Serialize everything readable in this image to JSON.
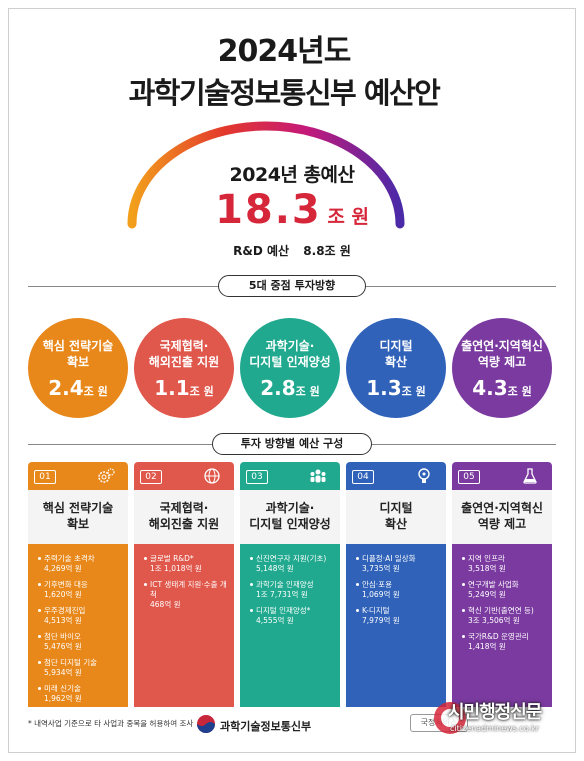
{
  "header": {
    "year_title": "2024년도",
    "main_title": "과학기술정보통신부 예산안"
  },
  "total": {
    "label": "2024년 총예산",
    "value": "18.3",
    "unit": "조 원",
    "rd_label": "R&D 예산",
    "rd_value": "8.8조 원"
  },
  "section1": {
    "label": "5대 중점 투자방향"
  },
  "section2": {
    "label": "투자 방향별 예산 구성"
  },
  "directions": [
    {
      "name": "핵심 전략기술\n확보",
      "amount": "2.4",
      "unit": "조 원",
      "color": "#e8881a"
    },
    {
      "name": "국제협력·\n해외진출 지원",
      "amount": "1.1",
      "unit": "조 원",
      "color": "#e0574b"
    },
    {
      "name": "과학기술·\n디지털 인재양성",
      "amount": "2.8",
      "unit": "조 원",
      "color": "#20a98f"
    },
    {
      "name": "디지털\n확산",
      "amount": "1.3",
      "unit": "조 원",
      "color": "#2f62b8"
    },
    {
      "name": "출연연·지역혁신\n역량 제고",
      "amount": "4.3",
      "unit": "조 원",
      "color": "#7b3aa0"
    }
  ],
  "cards": [
    {
      "num": "01",
      "title": "핵심 전략기술\n확보",
      "icon": "gear-icon",
      "color": "#e8881a",
      "items": [
        {
          "name": "주력기술 초격차",
          "amount": "4,269억 원"
        },
        {
          "name": "기후변화 대응",
          "amount": "1,620억 원"
        },
        {
          "name": "우주경제진입",
          "amount": "4,513억 원"
        },
        {
          "name": "첨단 바이오",
          "amount": "5,476억 원"
        },
        {
          "name": "첨단 디지털 기술",
          "amount": "5,934억 원"
        },
        {
          "name": "미래 신기술",
          "amount": "1,962억 원"
        }
      ]
    },
    {
      "num": "02",
      "title": "국제협력·\n해외진출 지원",
      "icon": "globe-icon",
      "color": "#e0574b",
      "items": [
        {
          "name": "글로벌 R&D*",
          "amount": "1조 1,018억 원"
        },
        {
          "name": "ICT 생태계 지원·수출 개척",
          "amount": "468억 원"
        }
      ]
    },
    {
      "num": "03",
      "title": "과학기술·\n디지털 인재양성",
      "icon": "people-icon",
      "color": "#20a98f",
      "items": [
        {
          "name": "신진연구자 지원(기초)",
          "amount": "5,148억 원"
        },
        {
          "name": "과학기술 인재양성",
          "amount": "1조 7,731억 원"
        },
        {
          "name": "디지털 인재양성*",
          "amount": "4,555억 원"
        }
      ]
    },
    {
      "num": "04",
      "title": "디지털\n확산",
      "icon": "bulb-icon",
      "color": "#2f62b8",
      "items": [
        {
          "name": "디플정·AI 일상화",
          "amount": "3,735억 원"
        },
        {
          "name": "안심·포용",
          "amount": "1,069억 원"
        },
        {
          "name": "K-디지털",
          "amount": "7,979억 원"
        }
      ]
    },
    {
      "num": "05",
      "title": "출연연·지역혁신\n역량 제고",
      "icon": "flask-icon",
      "color": "#7b3aa0",
      "items": [
        {
          "name": "지역 인프라",
          "amount": "3,518억 원"
        },
        {
          "name": "연구개발 사업화",
          "amount": "5,249억 원"
        },
        {
          "name": "혁신 기반(출연연 등)",
          "amount": "3조 3,506억 원"
        },
        {
          "name": "국가R&D 운영관리",
          "amount": "1,418억 원"
        }
      ]
    }
  ],
  "footer": {
    "note": "* 내역사업 기준으로 타 사업과 중복을 허용하여 조사",
    "ministry": "과학기술정보통신부",
    "press": "국정서비스",
    "watermark": "시민행정신문",
    "watermark_url": "citizenadminews.co.kr"
  }
}
